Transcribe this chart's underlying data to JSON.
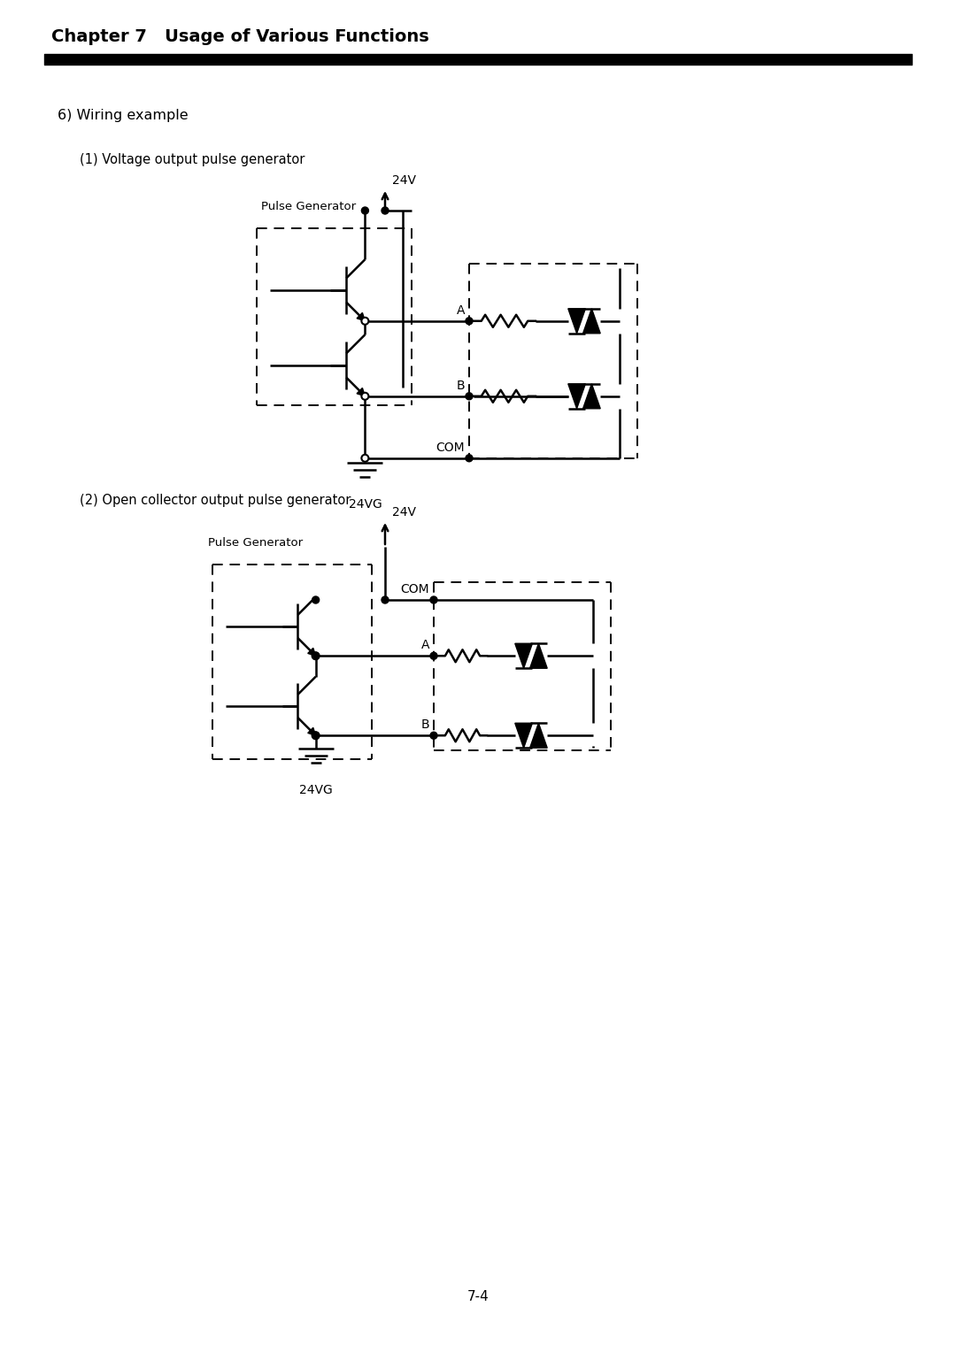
{
  "title": "Chapter 7   Usage of Various Functions",
  "section_label": "6) Wiring example",
  "subsection1": "(1) Voltage output pulse generator",
  "subsection2": "(2) Open collector output pulse generator",
  "page_number": "7-4",
  "bg_color": "#ffffff",
  "line_color": "#000000",
  "text_color": "#000000"
}
